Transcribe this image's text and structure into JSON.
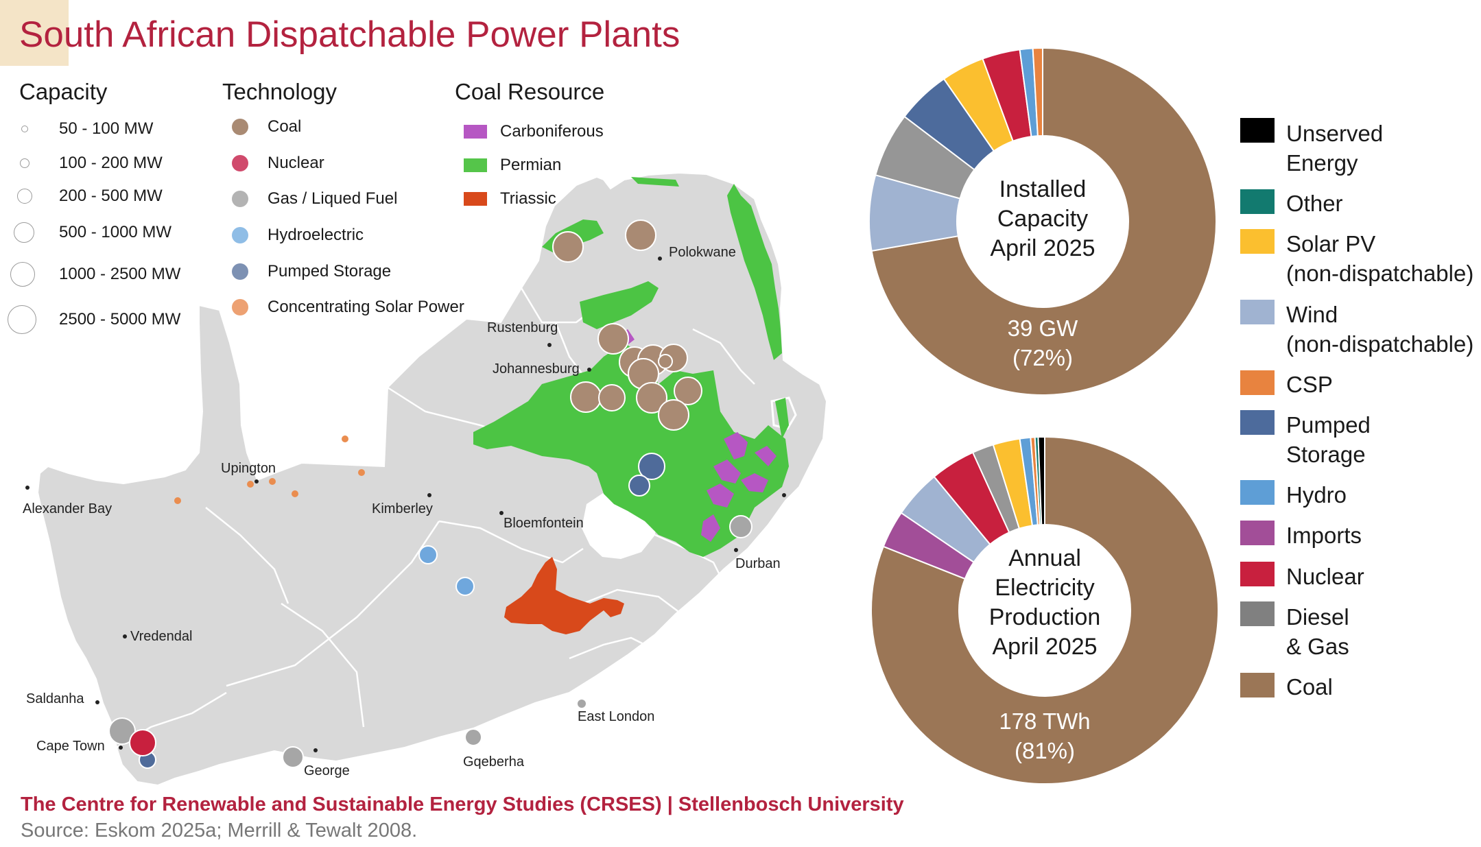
{
  "title": "South African Dispatchable Power Plants",
  "legend": {
    "capacity": {
      "heading": "Capacity",
      "items": [
        "50 - 100  MW",
        "100 - 200 MW",
        "200 - 500 MW",
        "500 - 1000  MW",
        "1000 - 2500 MW",
        "2500 - 5000 MW"
      ]
    },
    "technology": {
      "heading": "Technology",
      "items": [
        {
          "label": "Coal",
          "color": "#a98a73"
        },
        {
          "label": "Nuclear",
          "color": "#d04a6c"
        },
        {
          "label": "Gas / Liqued Fuel",
          "color": "#b3b3b3"
        },
        {
          "label": "Hydroelectric",
          "color": "#8fbde6"
        },
        {
          "label": "Pumped Storage",
          "color": "#7d91b3"
        },
        {
          "label": "Concentrating Solar Power",
          "color": "#eda172"
        }
      ]
    },
    "coal_resource": {
      "heading": "Coal Resource",
      "items": [
        {
          "label": "Carboniferous",
          "color": "#b657c3"
        },
        {
          "label": "Permian",
          "color": "#55c54a"
        },
        {
          "label": "Triassic",
          "color": "#d8491b"
        }
      ]
    }
  },
  "cities": {
    "polokwane": "Polokwane",
    "rustenburg": "Rustenburg",
    "johannesburg": "Johannesburg",
    "upington": "Upington",
    "alexander_bay": "Alexander Bay",
    "kimberley": "Kimberley",
    "bloemfontein": "Bloemfontein",
    "durban": "Durban",
    "vredendal": "Vredendal",
    "saldanha": "Saldanha",
    "cape_town": "Cape Town",
    "george": "George",
    "gqeberha": "Gqeberha",
    "east_london": "East London"
  },
  "charts": {
    "installed": {
      "center_label": [
        "Installed",
        "Capacity",
        "April 2025"
      ],
      "coal_label": [
        "39 GW",
        "(72%)"
      ]
    },
    "annual": {
      "center_label": [
        "Annual",
        "Electricity",
        "Production",
        "April 2025"
      ],
      "coal_label": [
        "178 TWh",
        "(81%)"
      ]
    }
  },
  "chart_data": [
    {
      "type": "pie",
      "title": "Installed Capacity April 2025",
      "categories": [
        "Coal",
        "Wind (non-dispatchable)",
        "Diesel & Gas",
        "Pumped Storage",
        "Solar PV (non-dispatchable)",
        "Nuclear",
        "Hydro",
        "CSP"
      ],
      "values": [
        72,
        7,
        6,
        5,
        4,
        3.5,
        1.2,
        0.9
      ],
      "total": "39 GW"
    },
    {
      "type": "pie",
      "title": "Annual Electricity Production April 2025",
      "categories": [
        "Coal",
        "Imports",
        "Wind (non-dispatchable)",
        "Nuclear",
        "Diesel & Gas",
        "Solar PV (non-dispatchable)",
        "Hydro",
        "CSP",
        "Other",
        "Unserved Energy"
      ],
      "values": [
        81,
        3.5,
        4.5,
        4.2,
        2,
        2.5,
        1,
        0.4,
        0.3,
        0.6
      ],
      "total": "178 TWh"
    }
  ],
  "donut_colors": {
    "Coal": "#9b7656",
    "Wind (non-dispatchable)": "#a0b3d1",
    "Diesel & Gas": "#969696",
    "Pumped Storage": "#4d6b9c",
    "Solar PV (non-dispatchable)": "#fbbf2f",
    "Nuclear": "#c8203e",
    "Hydro": "#5e9ed6",
    "CSP": "#e8833f",
    "Imports": "#a24e98",
    "Other": "#127a6f",
    "Unserved Energy": "#000000"
  },
  "energy_legend": [
    {
      "label": [
        "Unserved",
        "Energy"
      ],
      "color": "#000000"
    },
    {
      "label": [
        "Other"
      ],
      "color": "#127a6f"
    },
    {
      "label": [
        "Solar PV",
        "(non-dispatchable)"
      ],
      "color": "#fbbf2f"
    },
    {
      "label": [
        "Wind",
        "(non-dispatchable)"
      ],
      "color": "#a0b3d1"
    },
    {
      "label": [
        "CSP"
      ],
      "color": "#e8833f"
    },
    {
      "label": [
        "Pumped",
        "Storage"
      ],
      "color": "#4d6b9c"
    },
    {
      "label": [
        "Hydro"
      ],
      "color": "#5e9ed6"
    },
    {
      "label": [
        "Imports"
      ],
      "color": "#a24e98"
    },
    {
      "label": [
        "Nuclear"
      ],
      "color": "#c8203e"
    },
    {
      "label": [
        "Diesel",
        "& Gas"
      ],
      "color": "#808080"
    },
    {
      "label": [
        "Coal"
      ],
      "color": "#9b7656"
    }
  ],
  "footer": {
    "credit": "The Centre for Renewable and Sustainable Energy Studies (CRSES)  |  Stellenbosch University",
    "source": "Source: Eskom 2025a; Merrill & Tewalt 2008."
  }
}
